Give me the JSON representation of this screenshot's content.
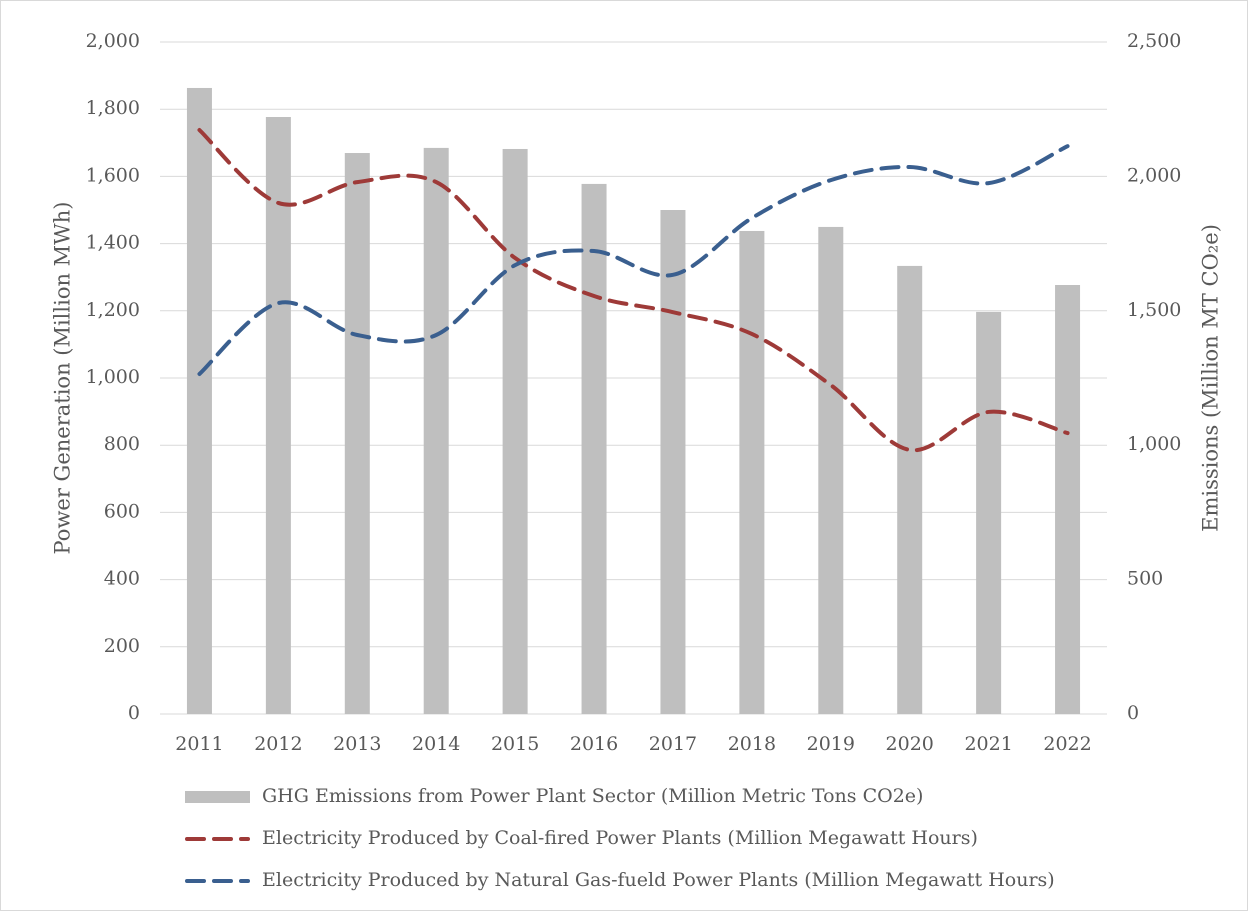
{
  "chart_data": {
    "type": "bar-line",
    "categories": [
      "2011",
      "2012",
      "2013",
      "2014",
      "2015",
      "2016",
      "2017",
      "2018",
      "2019",
      "2020",
      "2021",
      "2022"
    ],
    "ylabel": "Power Generation (Million MWh)",
    "y2label": "Emissions (Million MT CO₂e)",
    "ylim": [
      0,
      2000
    ],
    "yticks": [
      0,
      200,
      400,
      600,
      800,
      {
        "value": 1000,
        "label": "1,000"
      },
      {
        "value": 1200,
        "label": "1,200"
      },
      {
        "value": 1400,
        "label": "1,400"
      },
      {
        "value": 1600,
        "label": "1,600"
      },
      {
        "value": 1800,
        "label": "1,800"
      },
      {
        "value": 2000,
        "label": "2,000"
      }
    ],
    "y2lim": [
      0,
      2500
    ],
    "y2ticks": [
      0,
      500,
      {
        "value": 1000,
        "label": "1,000"
      },
      {
        "value": 1500,
        "label": "1,500"
      },
      {
        "value": 2000,
        "label": "2,000"
      },
      {
        "value": 2500,
        "label": "2,500"
      }
    ],
    "grid": true,
    "series": [
      {
        "name": "GHG Emissions from Power Plant Sector (Million Metric Tons CO2e)",
        "kind": "bar",
        "axis": "y2",
        "color": "#bfbfbf",
        "values": [
          2329,
          2221,
          2087,
          2106,
          2102,
          1972,
          1875,
          1797,
          1812,
          1667,
          1496,
          1596
        ]
      },
      {
        "name": "Electricity Produced by Coal-fired Power Plants (Million Megawatt Hours)",
        "kind": "line",
        "color": "#9e3a38",
        "values": [
          1738,
          1521,
          1583,
          1583,
          1357,
          1244,
          1196,
          1131,
          979,
          786,
          899,
          836
        ]
      },
      {
        "name": "Electricity Produced by Natural Gas-fueld Power Plants (Million Megawatt Hours)",
        "kind": "line",
        "color": "#3a5f8f",
        "values": [
          1012,
          1223,
          1128,
          1128,
          1336,
          1378,
          1307,
          1476,
          1589,
          1628,
          1580,
          1690
        ]
      }
    ]
  }
}
